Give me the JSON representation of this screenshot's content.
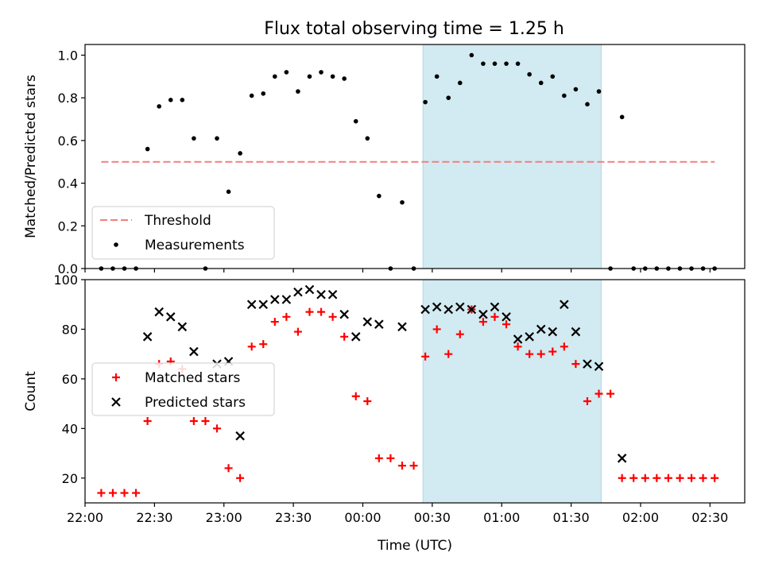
{
  "title": "Flux total observing time = 1.25 h",
  "colors": {
    "span": "#add8e6",
    "threshold": "#f08080",
    "measurements": "#000000",
    "matched": "#ff0000",
    "predicted": "#000000"
  },
  "chart_data": [
    {
      "type": "scatter",
      "ylabel": "Matched/Predicted stars",
      "xlim": [
        "22:00",
        "02:45"
      ],
      "ylim": [
        0,
        1.05
      ],
      "grid": false,
      "legend_position": "lower-left",
      "x_tick_labels_visible": false,
      "yticks": [
        "0.0",
        "0.2",
        "0.4",
        "0.6",
        "0.8",
        "1.0"
      ],
      "highlight_span": [
        "00:26",
        "01:43"
      ],
      "threshold": {
        "name": "Threshold",
        "value": 0.5,
        "x_range": [
          "22:07",
          "02:32"
        ]
      },
      "series": [
        {
          "name": "Measurements",
          "x": [
            "22:07",
            "22:12",
            "22:17",
            "22:22",
            "22:27",
            "22:32",
            "22:37",
            "22:42",
            "22:47",
            "22:52",
            "22:57",
            "23:02",
            "23:07",
            "23:12",
            "23:17",
            "23:22",
            "23:27",
            "23:32",
            "23:37",
            "23:42",
            "23:47",
            "23:52",
            "23:57",
            "00:02",
            "00:07",
            "00:12",
            "00:17",
            "00:22",
            "00:27",
            "00:32",
            "00:37",
            "00:42",
            "00:47",
            "00:52",
            "00:57",
            "01:02",
            "01:07",
            "01:12",
            "01:17",
            "01:22",
            "01:27",
            "01:32",
            "01:37",
            "01:42",
            "01:47",
            "01:52",
            "01:57",
            "02:02",
            "02:07",
            "02:12",
            "02:17",
            "02:22",
            "02:27",
            "02:32"
          ],
          "y": [
            0,
            0,
            0,
            0,
            0.56,
            0.76,
            0.79,
            0.79,
            0.61,
            0,
            0.61,
            0.36,
            0.54,
            0.81,
            0.82,
            0.9,
            0.92,
            0.83,
            0.9,
            0.92,
            0.9,
            0.89,
            0.69,
            0.61,
            0.34,
            0,
            0.31,
            0,
            0.78,
            0.9,
            0.8,
            0.87,
            1.0,
            0.96,
            0.96,
            0.96,
            0.96,
            0.91,
            0.87,
            0.9,
            0.81,
            0.84,
            0.77,
            0.83,
            0,
            0.71,
            0,
            0,
            0,
            0,
            0,
            0,
            0,
            0
          ]
        }
      ]
    },
    {
      "type": "scatter",
      "xlabel": "Time (UTC)",
      "ylabel": "Count",
      "xlim": [
        "22:00",
        "02:45"
      ],
      "ylim": [
        10,
        100
      ],
      "grid": false,
      "legend_position": "center-left",
      "xticks": [
        "22:00",
        "22:30",
        "23:00",
        "23:30",
        "00:00",
        "00:30",
        "01:00",
        "01:30",
        "02:00",
        "02:30"
      ],
      "yticks": [
        "20",
        "40",
        "60",
        "80",
        "100"
      ],
      "highlight_span": [
        "00:26",
        "01:43"
      ],
      "series": [
        {
          "name": "Matched stars",
          "marker": "plus",
          "x": [
            "22:07",
            "22:12",
            "22:17",
            "22:22",
            "22:27",
            "22:32",
            "22:37",
            "22:42",
            "22:47",
            "22:52",
            "22:57",
            "23:02",
            "23:07",
            "23:12",
            "23:17",
            "23:22",
            "23:27",
            "23:32",
            "23:37",
            "23:42",
            "23:47",
            "23:52",
            "23:57",
            "00:02",
            "00:07",
            "00:12",
            "00:17",
            "00:22",
            "00:27",
            "00:32",
            "00:37",
            "00:42",
            "00:47",
            "00:52",
            "00:57",
            "01:02",
            "01:07",
            "01:12",
            "01:17",
            "01:22",
            "01:27",
            "01:32",
            "01:37",
            "01:42",
            "01:47",
            "01:52",
            "01:57",
            "02:02",
            "02:07",
            "02:12",
            "02:17",
            "02:22",
            "02:27",
            "02:32"
          ],
          "y": [
            14,
            14,
            14,
            14,
            43,
            66,
            67,
            64,
            43,
            43,
            40,
            24,
            20,
            73,
            74,
            83,
            85,
            79,
            87,
            87,
            85,
            77,
            53,
            51,
            28,
            28,
            25,
            25,
            69,
            80,
            70,
            78,
            88,
            83,
            85,
            82,
            73,
            70,
            70,
            71,
            73,
            66,
            51,
            54,
            54,
            20,
            20,
            20,
            20,
            20,
            20,
            20,
            20,
            20
          ]
        },
        {
          "name": "Predicted stars",
          "marker": "x",
          "x": [
            "22:27",
            "22:32",
            "22:37",
            "22:42",
            "22:47",
            "22:57",
            "23:02",
            "23:07",
            "23:12",
            "23:17",
            "23:22",
            "23:27",
            "23:32",
            "23:37",
            "23:42",
            "23:47",
            "23:52",
            "23:57",
            "00:02",
            "00:07",
            "00:17",
            "00:27",
            "00:32",
            "00:37",
            "00:42",
            "00:47",
            "00:52",
            "00:57",
            "01:02",
            "01:07",
            "01:12",
            "01:17",
            "01:22",
            "01:27",
            "01:32",
            "01:37",
            "01:42",
            "01:52"
          ],
          "y": [
            77,
            87,
            85,
            81,
            71,
            66,
            67,
            37,
            90,
            90,
            92,
            92,
            95,
            96,
            94,
            94,
            86,
            77,
            83,
            82,
            81,
            88,
            89,
            88,
            89,
            88,
            86,
            89,
            85,
            76,
            77,
            80,
            79,
            90,
            79,
            66,
            65,
            28
          ]
        }
      ]
    }
  ]
}
